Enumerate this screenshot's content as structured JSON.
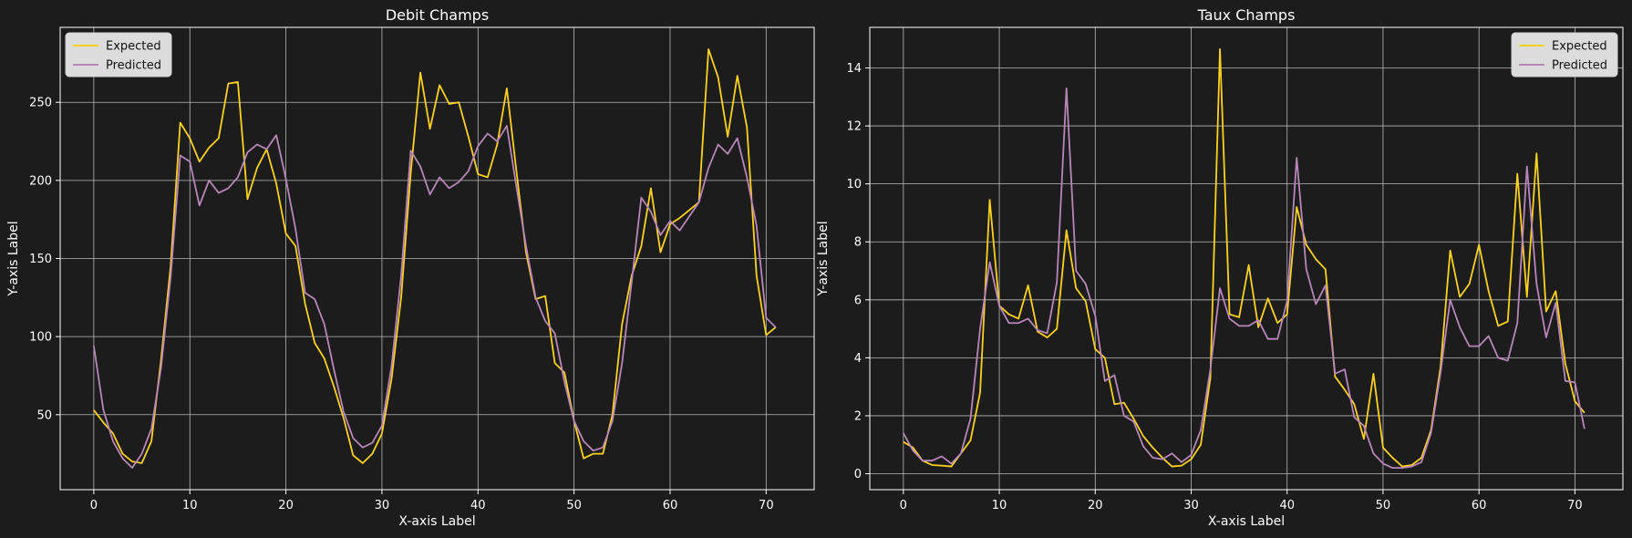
{
  "colors": {
    "background": "#1c1c1c",
    "axes_face": "#1c1c1c",
    "spine": "#ffffff",
    "grid": "#b9b9b9",
    "expected": "#ffd21f",
    "predicted": "#b986b9",
    "legend_bg": "#dcdcdc"
  },
  "chart_data": [
    {
      "type": "line",
      "title": "Debit Champs",
      "xlabel": "X-axis Label",
      "ylabel": "Y-axis Label",
      "xlim": [
        -3.5,
        75
      ],
      "ylim": [
        2,
        298
      ],
      "xticks": [
        0,
        10,
        20,
        30,
        40,
        50,
        60,
        70
      ],
      "yticks": [
        50,
        100,
        150,
        200,
        250
      ],
      "grid": true,
      "legend_position": "top-left",
      "series": [
        {
          "name": "Expected",
          "color": "#ffd21f",
          "values": [
            53,
            45,
            38,
            25,
            20,
            19,
            33,
            85,
            145,
            237,
            227,
            212,
            221,
            227,
            262,
            263,
            188,
            208,
            220,
            198,
            166,
            158,
            121,
            96,
            86,
            68,
            48,
            24,
            19,
            25,
            38,
            73,
            125,
            205,
            269,
            233,
            261,
            249,
            250,
            228,
            204,
            202,
            223,
            259,
            206,
            154,
            124,
            126,
            83,
            77,
            46,
            22,
            25,
            25,
            50,
            108,
            139,
            158,
            195,
            154,
            172,
            176,
            181,
            186,
            284,
            266,
            228,
            267,
            234,
            139,
            101,
            106
          ]
        },
        {
          "name": "Predicted",
          "color": "#b986b9",
          "values": [
            94,
            53,
            33,
            22,
            16,
            25,
            41,
            80,
            138,
            216,
            212,
            184,
            200,
            192,
            195,
            202,
            218,
            223,
            220,
            229,
            201,
            169,
            128,
            124,
            108,
            79,
            52,
            35,
            29,
            32,
            43,
            81,
            139,
            219,
            209,
            191,
            202,
            195,
            199,
            206,
            222,
            230,
            225,
            235,
            196,
            158,
            125,
            110,
            102,
            71,
            46,
            33,
            27,
            29,
            46,
            83,
            135,
            189,
            180,
            165,
            174,
            168,
            177,
            186,
            208,
            223,
            217,
            227,
            202,
            171,
            112,
            106
          ]
        }
      ]
    },
    {
      "type": "line",
      "title": "Taux Champs",
      "xlabel": "X-axis Label",
      "ylabel": "Y-axis Label",
      "xlim": [
        -3.5,
        75
      ],
      "ylim": [
        -0.55,
        15.4
      ],
      "xticks": [
        0,
        10,
        20,
        30,
        40,
        50,
        60,
        70
      ],
      "yticks": [
        0,
        2,
        4,
        6,
        8,
        10,
        12,
        14
      ],
      "grid": true,
      "legend_position": "top-right",
      "series": [
        {
          "name": "Expected",
          "color": "#ffd21f",
          "values": [
            1.1,
            0.9,
            0.45,
            0.3,
            0.28,
            0.25,
            0.7,
            1.15,
            2.8,
            9.45,
            5.8,
            5.5,
            5.35,
            6.5,
            4.9,
            4.7,
            5.0,
            8.4,
            6.4,
            5.95,
            4.3,
            4.0,
            2.4,
            2.45,
            1.9,
            1.3,
            0.9,
            0.55,
            0.25,
            0.28,
            0.5,
            1.0,
            3.3,
            14.65,
            5.5,
            5.4,
            7.2,
            5.05,
            6.05,
            5.2,
            5.5,
            9.2,
            7.9,
            7.4,
            7.05,
            3.35,
            2.9,
            2.4,
            1.2,
            3.45,
            0.9,
            0.55,
            0.25,
            0.3,
            0.55,
            1.5,
            3.7,
            7.7,
            6.1,
            6.55,
            7.9,
            6.3,
            5.1,
            5.25,
            10.35,
            6.1,
            11.05,
            5.6,
            6.3,
            3.8,
            2.5,
            2.1
          ]
        },
        {
          "name": "Predicted",
          "color": "#b986b9",
          "values": [
            1.4,
            0.8,
            0.45,
            0.45,
            0.6,
            0.35,
            0.7,
            1.9,
            5.0,
            7.3,
            5.8,
            5.2,
            5.2,
            5.35,
            4.95,
            4.85,
            6.6,
            13.3,
            7.0,
            6.55,
            5.45,
            3.2,
            3.4,
            2.0,
            1.8,
            0.95,
            0.55,
            0.5,
            0.7,
            0.4,
            0.65,
            1.5,
            3.6,
            6.4,
            5.35,
            5.1,
            5.1,
            5.3,
            4.65,
            4.65,
            5.95,
            10.9,
            7.05,
            5.85,
            6.5,
            3.45,
            3.6,
            1.95,
            1.65,
            0.7,
            0.35,
            0.2,
            0.2,
            0.25,
            0.4,
            1.4,
            3.5,
            6.0,
            5.05,
            4.4,
            4.4,
            4.75,
            4.0,
            3.9,
            5.2,
            10.6,
            6.55,
            4.7,
            5.9,
            3.2,
            3.15,
            1.55
          ]
        }
      ]
    }
  ]
}
